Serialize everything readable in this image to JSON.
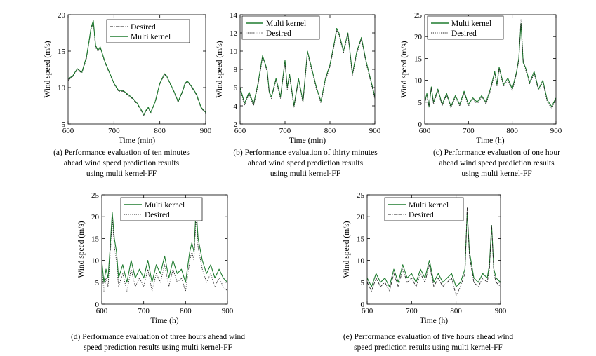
{
  "chart_data": [
    {
      "id": "a",
      "type": "line",
      "xlabel": "Time (min)",
      "ylabel": "Wind speed (m/s)",
      "xlim": [
        600,
        900
      ],
      "ylim": [
        5,
        20
      ],
      "xticks": [
        600,
        700,
        800,
        900
      ],
      "yticks": [
        5,
        10,
        15,
        20
      ],
      "legend": {
        "placement": "top-right",
        "entries": [
          "Desired",
          "Multi kernel"
        ]
      },
      "caption": [
        "(a) Performance evaluation of ten minutes",
        "ahead wind speed prediction results",
        "using multi kernel-FF"
      ],
      "series": [
        {
          "name": "Desired",
          "style": "dashdot",
          "color": "#1a1a1a",
          "x": [
            600,
            610,
            620,
            630,
            640,
            645,
            650,
            655,
            660,
            665,
            670,
            680,
            690,
            700,
            710,
            720,
            730,
            740,
            750,
            760,
            765,
            770,
            775,
            780,
            790,
            800,
            810,
            815,
            820,
            830,
            840,
            850,
            855,
            860,
            870,
            880,
            890,
            900
          ],
          "y": [
            11,
            11.5,
            12.5,
            12,
            14,
            16,
            18,
            19,
            15.5,
            15,
            15.5,
            13.5,
            12,
            10.5,
            9.5,
            9.5,
            9,
            8.5,
            7.8,
            6.8,
            6.2,
            6.8,
            7.2,
            6.5,
            8,
            10.5,
            11.8,
            11.5,
            10.8,
            9.5,
            8,
            9.5,
            10.5,
            10.8,
            10,
            9,
            7.2,
            6.5
          ]
        },
        {
          "name": "Multi kernel",
          "style": "solid",
          "color": "#1e7b2e",
          "x": [
            600,
            610,
            620,
            630,
            640,
            645,
            650,
            655,
            660,
            665,
            670,
            680,
            690,
            700,
            710,
            720,
            730,
            740,
            750,
            760,
            765,
            770,
            775,
            780,
            790,
            800,
            810,
            815,
            820,
            830,
            840,
            850,
            855,
            860,
            870,
            880,
            890,
            900
          ],
          "y": [
            11.2,
            11.6,
            12.6,
            12.1,
            14.2,
            16.1,
            18.2,
            19.2,
            15.8,
            15.1,
            15.6,
            13.6,
            12.1,
            10.6,
            9.6,
            9.6,
            9.1,
            8.6,
            7.9,
            6.9,
            6.3,
            6.9,
            7.3,
            6.6,
            8.1,
            10.6,
            11.9,
            11.6,
            10.9,
            9.6,
            8.1,
            9.6,
            10.6,
            10.9,
            10.1,
            9.1,
            7.3,
            6.6
          ]
        }
      ]
    },
    {
      "id": "b",
      "type": "line",
      "xlabel": "Time (min)",
      "ylabel": "Wind speed (m/s)",
      "xlim": [
        600,
        900
      ],
      "ylim": [
        2,
        14
      ],
      "xticks": [
        600,
        700,
        800,
        900
      ],
      "yticks": [
        2,
        4,
        6,
        8,
        10,
        12,
        14
      ],
      "legend": {
        "placement": "top-left",
        "entries": [
          "Multi kernel",
          "Desired"
        ]
      },
      "caption": [
        "(b) Performance evaluation of thirty minutes",
        "ahead wind speed prediction results",
        "using multi kernel-FF"
      ],
      "series": [
        {
          "name": "Multi kernel",
          "style": "solid",
          "color": "#1e7b2e",
          "x": [
            600,
            610,
            620,
            630,
            640,
            650,
            660,
            665,
            670,
            680,
            690,
            700,
            705,
            710,
            720,
            730,
            740,
            750,
            760,
            770,
            780,
            790,
            800,
            810,
            815,
            820,
            830,
            840,
            850,
            860,
            870,
            880,
            890,
            900
          ],
          "y": [
            6,
            4.3,
            5.5,
            4.2,
            6.5,
            9.5,
            8,
            5.5,
            5,
            7,
            5,
            9,
            6,
            7.5,
            4,
            7,
            4.5,
            10,
            8,
            6,
            4.5,
            7,
            8.5,
            11,
            12.5,
            12,
            10,
            12,
            7.5,
            10,
            11.5,
            9,
            7,
            5
          ]
        },
        {
          "name": "Desired",
          "style": "dotted",
          "color": "#222222",
          "x": [
            600,
            610,
            620,
            630,
            640,
            650,
            660,
            665,
            670,
            680,
            690,
            700,
            705,
            710,
            720,
            730,
            740,
            750,
            760,
            770,
            780,
            790,
            800,
            810,
            815,
            820,
            830,
            840,
            850,
            860,
            870,
            880,
            890,
            900
          ],
          "y": [
            5.8,
            4.1,
            5.3,
            4.0,
            6.3,
            9.3,
            7.8,
            5.3,
            4.8,
            6.8,
            4.8,
            8.8,
            5.8,
            7.3,
            3.8,
            6.8,
            4.3,
            9.8,
            7.8,
            5.8,
            4.3,
            6.8,
            8.3,
            10.8,
            12.3,
            11.8,
            9.8,
            11.8,
            7.3,
            9.8,
            11.3,
            8.8,
            6.8,
            4.8
          ]
        }
      ]
    },
    {
      "id": "c",
      "type": "line",
      "xlabel": "Time (h)",
      "ylabel": "Wind speed (m/s)",
      "xlim": [
        600,
        900
      ],
      "ylim": [
        0,
        25
      ],
      "xticks": [
        600,
        700,
        800,
        900
      ],
      "yticks": [
        0,
        5,
        10,
        15,
        20,
        25
      ],
      "legend": {
        "placement": "top-left",
        "entries": [
          "Multi kernel",
          "Desired"
        ]
      },
      "caption": [
        "(c) Performance evaluation of one hour",
        "ahead wind speed prediction results",
        "using multi kernel-FF"
      ],
      "series": [
        {
          "name": "Multi kernel",
          "style": "solid",
          "color": "#1e7b2e",
          "x": [
            600,
            605,
            610,
            615,
            620,
            630,
            640,
            650,
            660,
            670,
            680,
            690,
            700,
            710,
            720,
            730,
            740,
            750,
            760,
            765,
            770,
            780,
            790,
            800,
            810,
            815,
            820,
            825,
            830,
            840,
            850,
            860,
            870,
            880,
            890,
            900
          ],
          "y": [
            5,
            7,
            4,
            8.5,
            5,
            8,
            4.5,
            7,
            4,
            6.5,
            4.5,
            7.5,
            4.5,
            6,
            5,
            6.5,
            5,
            8,
            12,
            9,
            13,
            9,
            10.5,
            8,
            12,
            15,
            23,
            14,
            13,
            9.5,
            12,
            8,
            10,
            5.5,
            4,
            6
          ]
        },
        {
          "name": "Desired",
          "style": "dotted",
          "color": "#222222",
          "x": [
            600,
            605,
            610,
            615,
            620,
            630,
            640,
            650,
            660,
            670,
            680,
            690,
            700,
            710,
            720,
            730,
            740,
            750,
            760,
            765,
            770,
            780,
            790,
            800,
            810,
            815,
            820,
            825,
            830,
            840,
            850,
            860,
            870,
            880,
            890,
            900
          ],
          "y": [
            4.8,
            6.6,
            3.7,
            8.2,
            4.6,
            7.6,
            4.2,
            6.6,
            3.7,
            6.2,
            4.1,
            7.1,
            4.1,
            5.7,
            4.6,
            6.2,
            4.6,
            7.6,
            11.6,
            8.6,
            12.6,
            8.6,
            10.1,
            7.6,
            11.6,
            14.6,
            24,
            14.6,
            12.6,
            9.1,
            11.6,
            7.6,
            9.6,
            5.1,
            3.6,
            5.6
          ]
        }
      ]
    },
    {
      "id": "d",
      "type": "line",
      "xlabel": "Time (h)",
      "ylabel": "Wind speed (m/s)",
      "xlim": [
        600,
        900
      ],
      "ylim": [
        0,
        25
      ],
      "xticks": [
        600,
        700,
        800,
        900
      ],
      "yticks": [
        0,
        5,
        10,
        15,
        20,
        25
      ],
      "legend": {
        "placement": "top-center",
        "entries": [
          "Multi kernel",
          "Desired"
        ]
      },
      "caption": [
        "(d) Performance evaluation of three hours ahead wind",
        "speed prediction results using multi kernel-FF"
      ],
      "series": [
        {
          "name": "Multi kernel",
          "style": "solid",
          "color": "#1e7b2e",
          "x": [
            600,
            605,
            610,
            615,
            620,
            625,
            630,
            635,
            640,
            650,
            660,
            670,
            680,
            690,
            700,
            710,
            720,
            730,
            740,
            750,
            760,
            770,
            780,
            790,
            800,
            810,
            815,
            820,
            825,
            830,
            840,
            850,
            860,
            870,
            880,
            890,
            900
          ],
          "y": [
            10,
            5,
            8,
            6,
            13,
            21,
            15,
            12,
            6,
            9,
            5,
            10,
            6,
            8,
            6,
            10,
            5,
            9,
            7,
            11,
            6,
            10,
            7,
            8,
            5,
            12,
            14,
            12,
            22,
            15,
            10,
            7,
            9,
            6,
            8,
            6,
            5
          ]
        },
        {
          "name": "Desired",
          "style": "dotted",
          "color": "#222222",
          "x": [
            600,
            605,
            610,
            615,
            620,
            625,
            630,
            635,
            640,
            650,
            660,
            670,
            680,
            690,
            700,
            710,
            720,
            730,
            740,
            750,
            760,
            770,
            780,
            790,
            800,
            810,
            815,
            820,
            825,
            830,
            840,
            850,
            860,
            870,
            880,
            890,
            900
          ],
          "y": [
            8,
            3,
            6,
            4,
            11,
            20,
            13,
            10,
            4,
            7,
            3,
            8,
            4,
            6,
            4,
            8,
            3,
            7,
            5,
            9,
            4,
            8,
            5,
            6,
            3,
            10,
            12,
            10,
            20,
            13,
            8,
            5,
            7,
            4,
            6,
            4,
            3
          ]
        }
      ]
    },
    {
      "id": "e",
      "type": "line",
      "xlabel": "Time (h)",
      "ylabel": "Wind speed (m/s)",
      "xlim": [
        600,
        900
      ],
      "ylim": [
        0,
        25
      ],
      "xticks": [
        600,
        700,
        800,
        900
      ],
      "yticks": [
        0,
        5,
        10,
        15,
        20,
        25
      ],
      "legend": {
        "placement": "top-center",
        "entries": [
          "Multi kernel",
          "Desired"
        ]
      },
      "caption": [
        "(e) Performance evaluation of five hours ahead wind",
        "speed prediction results using multi kernel-FF"
      ],
      "series": [
        {
          "name": "Multi kernel",
          "style": "solid",
          "color": "#1e7b2e",
          "x": [
            600,
            610,
            620,
            630,
            640,
            650,
            660,
            670,
            680,
            690,
            700,
            710,
            720,
            730,
            740,
            750,
            760,
            770,
            780,
            790,
            800,
            810,
            820,
            825,
            830,
            840,
            850,
            860,
            870,
            875,
            880,
            885,
            890,
            900
          ],
          "y": [
            6,
            4,
            7,
            5,
            6,
            4,
            8,
            5,
            9,
            6,
            7,
            5,
            8,
            6,
            10,
            5,
            7,
            5,
            6,
            7,
            4,
            5,
            8,
            21,
            12,
            6,
            5,
            7,
            6,
            9,
            18,
            8,
            6,
            5
          ]
        },
        {
          "name": "Desired",
          "style": "dashdot",
          "color": "#222222",
          "x": [
            600,
            610,
            620,
            630,
            640,
            650,
            660,
            670,
            680,
            690,
            700,
            710,
            720,
            730,
            740,
            750,
            760,
            770,
            780,
            790,
            800,
            810,
            820,
            825,
            830,
            840,
            850,
            860,
            870,
            875,
            880,
            885,
            890,
            900
          ],
          "y": [
            5,
            3,
            6,
            4,
            5,
            3,
            7,
            4,
            8,
            5,
            6,
            4,
            7,
            5,
            9,
            4,
            6,
            4,
            5,
            6,
            2,
            4,
            7,
            22,
            11,
            5,
            4,
            6,
            5,
            8,
            18,
            7,
            5,
            4
          ]
        }
      ]
    }
  ]
}
